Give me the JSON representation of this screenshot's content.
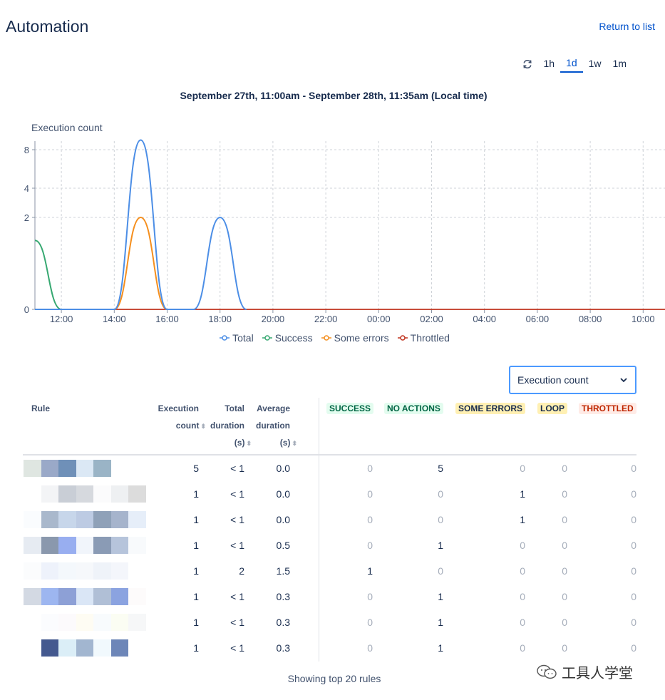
{
  "header": {
    "title": "Automation",
    "return_link": "Return to list"
  },
  "time_range": {
    "options": [
      "1h",
      "1d",
      "1w",
      "1m"
    ],
    "selected": "1d",
    "refresh_icon": "refresh-icon"
  },
  "date_range": "September 27th, 11:00am - September 28th, 11:35am (Local time)",
  "chart_data": {
    "type": "line",
    "ylabel": "Execution count",
    "x_ticks": [
      "12:00",
      "14:00",
      "16:00",
      "18:00",
      "20:00",
      "22:00",
      "00:00",
      "02:00",
      "04:00",
      "06:00",
      "08:00",
      "10:00"
    ],
    "y_ticks": [
      "0",
      "2",
      "4",
      "8"
    ],
    "grid": true,
    "legend_position": "bottom",
    "series": [
      {
        "name": "Total",
        "color": "#4c8ee6",
        "points": [
          [
            "11:00",
            0
          ],
          [
            "14:00",
            0
          ],
          [
            "15:00",
            9
          ],
          [
            "16:00",
            0
          ],
          [
            "17:00",
            0
          ],
          [
            "18:00",
            2
          ],
          [
            "19:00",
            0
          ]
        ]
      },
      {
        "name": "Success",
        "color": "#36a871",
        "points": [
          [
            "11:00",
            1.5
          ],
          [
            "12:00",
            0
          ]
        ]
      },
      {
        "name": "Some errors",
        "color": "#f58f1e",
        "points": [
          [
            "14:00",
            0
          ],
          [
            "15:00",
            2
          ],
          [
            "16:00",
            0
          ]
        ]
      },
      {
        "name": "Throttled",
        "color": "#c0321e",
        "points": [
          [
            "11:00",
            0
          ],
          [
            "11:35",
            0
          ]
        ]
      }
    ]
  },
  "metric_select": {
    "value": "Execution count"
  },
  "table": {
    "headers": {
      "rule": "Rule",
      "execution_count_1": "Execution",
      "execution_count_2": "count",
      "total_duration_1": "Total",
      "total_duration_2": "duration",
      "total_duration_3": "(s)",
      "avg_duration_1": "Average",
      "avg_duration_2": "duration",
      "avg_duration_3": "(s)"
    },
    "status_headers": [
      "SUCCESS",
      "NO ACTIONS",
      "SOME ERRORS",
      "LOOP",
      "THROTTLED"
    ],
    "rows": [
      {
        "count": "5",
        "total": "< 1",
        "avg": "0.0",
        "success": "0",
        "no_actions": "5",
        "some_errors": "0",
        "loop": "0",
        "throttled": "0"
      },
      {
        "count": "1",
        "total": "< 1",
        "avg": "0.0",
        "success": "0",
        "no_actions": "0",
        "some_errors": "1",
        "loop": "0",
        "throttled": "0"
      },
      {
        "count": "1",
        "total": "< 1",
        "avg": "0.0",
        "success": "0",
        "no_actions": "0",
        "some_errors": "1",
        "loop": "0",
        "throttled": "0"
      },
      {
        "count": "1",
        "total": "< 1",
        "avg": "0.5",
        "success": "0",
        "no_actions": "1",
        "some_errors": "0",
        "loop": "0",
        "throttled": "0"
      },
      {
        "count": "1",
        "total": "2",
        "avg": "1.5",
        "success": "1",
        "no_actions": "0",
        "some_errors": "0",
        "loop": "0",
        "throttled": "0"
      },
      {
        "count": "1",
        "total": "< 1",
        "avg": "0.3",
        "success": "0",
        "no_actions": "1",
        "some_errors": "0",
        "loop": "0",
        "throttled": "0"
      },
      {
        "count": "1",
        "total": "< 1",
        "avg": "0.3",
        "success": "0",
        "no_actions": "1",
        "some_errors": "0",
        "loop": "0",
        "throttled": "0"
      },
      {
        "count": "1",
        "total": "< 1",
        "avg": "0.3",
        "success": "0",
        "no_actions": "1",
        "some_errors": "0",
        "loop": "0",
        "throttled": "0"
      }
    ]
  },
  "footer": {
    "text": "Showing top 20 rules"
  },
  "watermark": {
    "text": "工具人学堂"
  }
}
